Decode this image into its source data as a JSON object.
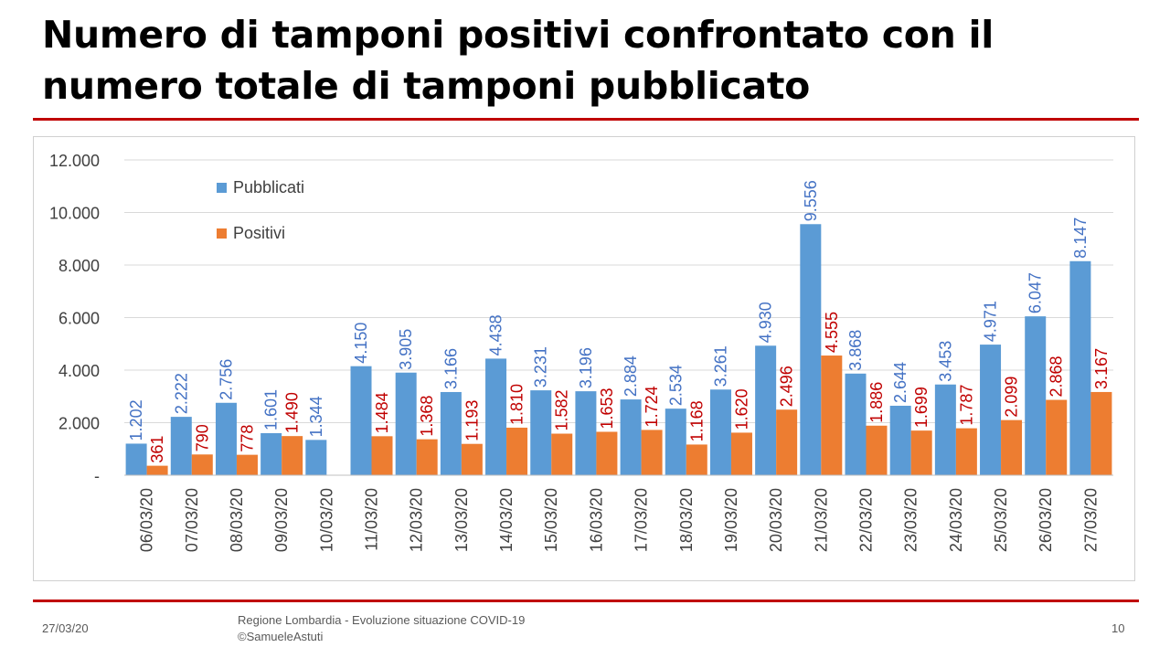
{
  "slide": {
    "title_line1": "Numero di tamponi positivi confrontato con il",
    "title_line2": "numero totale di tamponi pubblicato"
  },
  "footer": {
    "date": "27/03/20",
    "source_line1": "Regione Lombardia - Evoluzione situazione COVID-19",
    "source_line2": "©SamueleAstuti",
    "page_number": "10"
  },
  "colors": {
    "pubblicati": "#5b9bd5",
    "positivi": "#ed7d31",
    "pubblicati_label": "#4472c4",
    "positivi_label": "#c00000",
    "accent_rule": "#c00000"
  },
  "chart_data": {
    "type": "bar",
    "title": "",
    "xlabel": "",
    "ylabel": "",
    "ylim": [
      0,
      12000
    ],
    "y_ticks": [
      0,
      2000,
      4000,
      6000,
      8000,
      10000,
      12000
    ],
    "y_tick_labels": [
      "-",
      "2.000",
      "4.000",
      "6.000",
      "8.000",
      "10.000",
      "12.000"
    ],
    "legend_position": "top-left",
    "gridlines": true,
    "categories": [
      "06/03/20",
      "07/03/20",
      "08/03/20",
      "09/03/20",
      "10/03/20",
      "11/03/20",
      "12/03/20",
      "13/03/20",
      "14/03/20",
      "15/03/20",
      "16/03/20",
      "17/03/20",
      "18/03/20",
      "19/03/20",
      "20/03/20",
      "21/03/20",
      "22/03/20",
      "23/03/20",
      "24/03/20",
      "25/03/20",
      "26/03/20",
      "27/03/20"
    ],
    "series": [
      {
        "name": "Pubblicati",
        "values": [
          1202,
          2222,
          2756,
          1601,
          1344,
          4150,
          3905,
          3166,
          4438,
          3231,
          3196,
          2884,
          2534,
          3261,
          4930,
          9556,
          3868,
          2644,
          3453,
          4971,
          6047,
          8147
        ],
        "labels": [
          "1.202",
          "2.222",
          "2.756",
          "1.601",
          "1.344",
          "4.150",
          "3.905",
          "3.166",
          "4.438",
          "3.231",
          "3.196",
          "2.884",
          "2.534",
          "3.261",
          "4.930",
          "9.556",
          "3.868",
          "2.644",
          "3.453",
          "4.971",
          "6.047",
          "8.147"
        ]
      },
      {
        "name": "Positivi",
        "values": [
          361,
          790,
          778,
          1490,
          0,
          1484,
          1368,
          1193,
          1810,
          1582,
          1653,
          1724,
          1168,
          1620,
          2496,
          4555,
          1886,
          1699,
          1787,
          2099,
          2868,
          3167
        ],
        "labels": [
          "361",
          "790",
          "778",
          "1.490",
          "",
          "1.484",
          "1.368",
          "1.193",
          "1.810",
          "1.582",
          "1.653",
          "1.724",
          "1.168",
          "1.620",
          "2.496",
          "4.555",
          "1.886",
          "1.699",
          "1.787",
          "2.099",
          "2.868",
          "3.167"
        ]
      }
    ]
  }
}
